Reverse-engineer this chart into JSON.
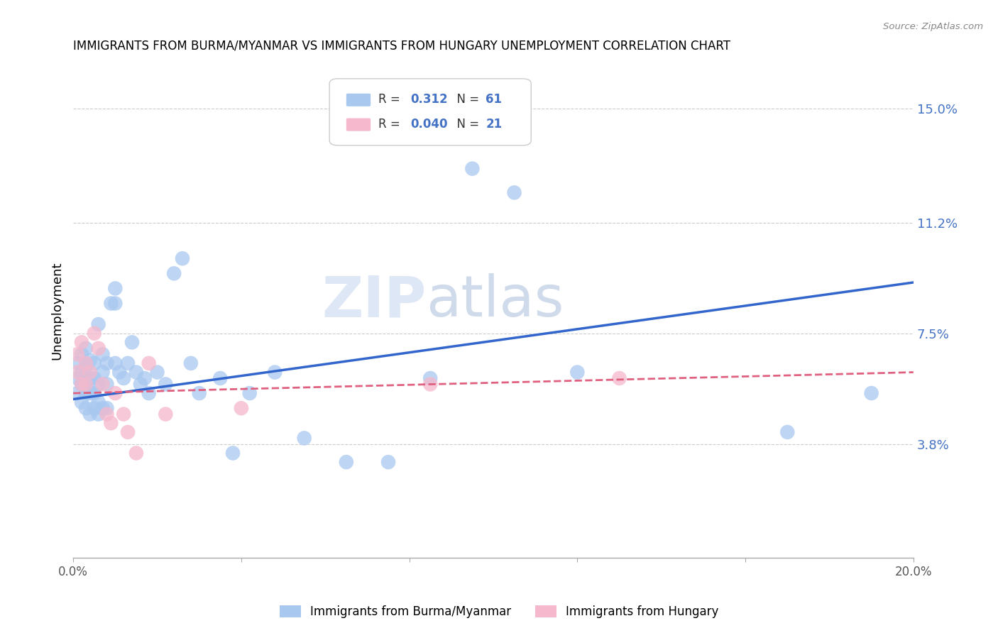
{
  "title": "IMMIGRANTS FROM BURMA/MYANMAR VS IMMIGRANTS FROM HUNGARY UNEMPLOYMENT CORRELATION CHART",
  "source": "Source: ZipAtlas.com",
  "ylabel": "Unemployment",
  "x_min": 0.0,
  "x_max": 0.2,
  "y_min": 0.0,
  "y_max": 0.165,
  "x_ticks": [
    0.0,
    0.04,
    0.08,
    0.12,
    0.16,
    0.2
  ],
  "x_tick_labels": [
    "0.0%",
    "",
    "",
    "",
    "",
    "20.0%"
  ],
  "y_tick_values": [
    0.038,
    0.075,
    0.112,
    0.15
  ],
  "y_tick_labels": [
    "3.8%",
    "7.5%",
    "11.2%",
    "15.0%"
  ],
  "legend_r1": "R = ",
  "legend_v1": "0.312",
  "legend_n1_label": "N = ",
  "legend_n1_val": "61",
  "legend_r2": "R = ",
  "legend_v2": "0.040",
  "legend_n2_label": "N = ",
  "legend_n2_val": "21",
  "color_burma": "#a8c8f0",
  "color_hungary": "#f5b8cc",
  "color_burma_line": "#3366cc",
  "color_hungary_line": "#e06080",
  "color_value": "#4472c4",
  "watermark_zip": "ZIP",
  "watermark_atlas": "atlas",
  "burma_x": [
    0.001,
    0.001,
    0.001,
    0.002,
    0.002,
    0.002,
    0.002,
    0.003,
    0.003,
    0.003,
    0.003,
    0.003,
    0.004,
    0.004,
    0.004,
    0.004,
    0.005,
    0.005,
    0.005,
    0.005,
    0.006,
    0.006,
    0.006,
    0.006,
    0.007,
    0.007,
    0.007,
    0.008,
    0.008,
    0.008,
    0.009,
    0.01,
    0.01,
    0.01,
    0.011,
    0.012,
    0.013,
    0.014,
    0.015,
    0.016,
    0.017,
    0.018,
    0.02,
    0.022,
    0.024,
    0.026,
    0.028,
    0.03,
    0.035,
    0.038,
    0.042,
    0.048,
    0.055,
    0.065,
    0.075,
    0.085,
    0.095,
    0.105,
    0.12,
    0.17,
    0.19
  ],
  "burma_y": [
    0.055,
    0.06,
    0.065,
    0.052,
    0.058,
    0.062,
    0.068,
    0.05,
    0.055,
    0.058,
    0.064,
    0.07,
    0.048,
    0.055,
    0.06,
    0.066,
    0.05,
    0.055,
    0.06,
    0.065,
    0.048,
    0.052,
    0.058,
    0.078,
    0.05,
    0.062,
    0.068,
    0.05,
    0.058,
    0.065,
    0.085,
    0.085,
    0.09,
    0.065,
    0.062,
    0.06,
    0.065,
    0.072,
    0.062,
    0.058,
    0.06,
    0.055,
    0.062,
    0.058,
    0.095,
    0.1,
    0.065,
    0.055,
    0.06,
    0.035,
    0.055,
    0.062,
    0.04,
    0.032,
    0.032,
    0.06,
    0.13,
    0.122,
    0.062,
    0.042,
    0.055
  ],
  "hungary_x": [
    0.001,
    0.001,
    0.002,
    0.002,
    0.003,
    0.003,
    0.004,
    0.005,
    0.006,
    0.007,
    0.008,
    0.009,
    0.01,
    0.012,
    0.013,
    0.015,
    0.018,
    0.022,
    0.04,
    0.085,
    0.13
  ],
  "hungary_y": [
    0.062,
    0.068,
    0.058,
    0.072,
    0.058,
    0.065,
    0.062,
    0.075,
    0.07,
    0.058,
    0.048,
    0.045,
    0.055,
    0.048,
    0.042,
    0.035,
    0.065,
    0.048,
    0.05,
    0.058,
    0.06
  ],
  "burma_line_x": [
    0.0,
    0.2
  ],
  "burma_line_y": [
    0.053,
    0.092
  ],
  "hungary_line_x": [
    0.0,
    0.2
  ],
  "hungary_line_y": [
    0.055,
    0.062
  ]
}
